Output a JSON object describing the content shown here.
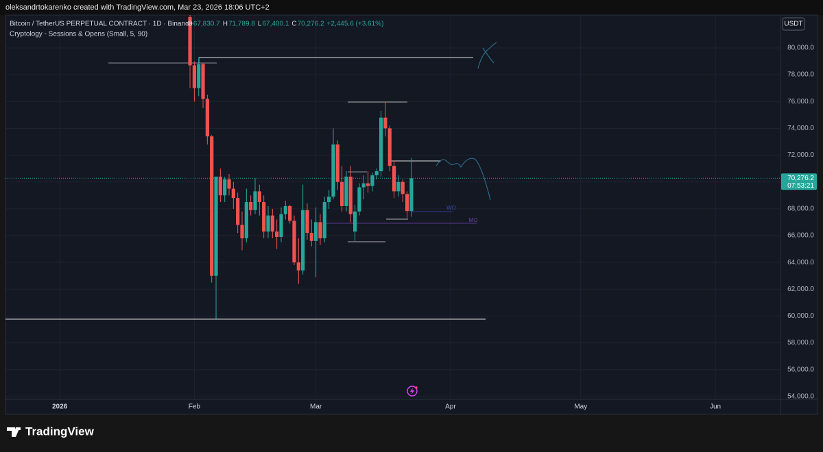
{
  "header": {
    "attribution": "oleksandrtokarenko created with TradingView.com, Mar 23, 2026 18:06 UTC+2"
  },
  "chart_data": {
    "type": "candlestick",
    "title": "Bitcoin / TetherUS PERPETUAL CONTRACT · 1D · Binance",
    "ohlc_legend": [
      {
        "letter": "O",
        "text": "67,830.7"
      },
      {
        "letter": "H",
        "text": "71,789.8"
      },
      {
        "letter": "L",
        "text": "67,400.1"
      },
      {
        "letter": "C",
        "text": "70,276.2"
      }
    ],
    "change": "+2,445.6 (+3.61%)",
    "indicator": "Cryptology - Sessions & Opens (Small, 5, 90)",
    "currency": "USDT",
    "up_color": "#26a69a",
    "down_color": "#ef5350",
    "grid": true,
    "xlim": [
      -12.5,
      166
    ],
    "xticks": [
      {
        "value": 0,
        "label": "2026"
      },
      {
        "value": 31,
        "label": "Feb"
      },
      {
        "value": 59,
        "label": "Mar"
      },
      {
        "value": 90,
        "label": "Apr"
      },
      {
        "value": 120,
        "label": "May"
      },
      {
        "value": 151,
        "label": "Jun"
      }
    ],
    "ylim": [
      53790,
      82450
    ],
    "yticks": [
      {
        "value": 54000,
        "label": "54,000.0"
      },
      {
        "value": 56000,
        "label": "56,000.0"
      },
      {
        "value": 58000,
        "label": "58,000.0"
      },
      {
        "value": 60000,
        "label": "60,000.0"
      },
      {
        "value": 62000,
        "label": "62,000.0"
      },
      {
        "value": 64000,
        "label": "64,000.0"
      },
      {
        "value": 66000,
        "label": "66,000.0"
      },
      {
        "value": 68000,
        "label": "68,000.0"
      },
      {
        "value": 70000,
        "label": "70,000.0"
      },
      {
        "value": 72000,
        "label": "72,000.0"
      },
      {
        "value": 74000,
        "label": "74,000.0"
      },
      {
        "value": 76000,
        "label": "76,000.0"
      },
      {
        "value": 78000,
        "label": "78,000.0"
      },
      {
        "value": 80000,
        "label": "80,000.0"
      }
    ],
    "last_price": {
      "value": 70276.2,
      "label": "70,276.2"
    },
    "countdown": "07:53:21",
    "level_labels": [
      "WO",
      "MO"
    ],
    "x": [
      30,
      31,
      32,
      33,
      34,
      35,
      36,
      37,
      38,
      39,
      40,
      41,
      42,
      43,
      44,
      45,
      46,
      47,
      48,
      49,
      50,
      51,
      52,
      53,
      54,
      55,
      56,
      57,
      58,
      59,
      60,
      61,
      62,
      63,
      64,
      65,
      66,
      67,
      68,
      69,
      70,
      71,
      72,
      73,
      74,
      75,
      76,
      77,
      78,
      79,
      80,
      81
    ],
    "open": [
      82300,
      78700,
      77000,
      78800,
      76200,
      73400,
      63000,
      70400,
      69000,
      70200,
      69500,
      68800,
      66800,
      65800,
      68500,
      67900,
      69300,
      68500,
      66300,
      67500,
      66300,
      65900,
      67600,
      68200,
      67100,
      64000,
      63400,
      67900,
      66200,
      65600,
      67000,
      65800,
      68500,
      68900,
      72800,
      70000,
      68200,
      70400,
      66300,
      67800,
      69600,
      69900,
      69700,
      70500,
      70800,
      74800,
      74000,
      71200,
      69300,
      70000,
      69100,
      67830.7
    ],
    "high": [
      82450,
      79000,
      79300,
      78900,
      76500,
      73500,
      70400,
      71000,
      70400,
      70600,
      70000,
      69200,
      67800,
      69500,
      69000,
      70300,
      69800,
      69000,
      68200,
      68000,
      67200,
      68100,
      68600,
      68300,
      67500,
      65800,
      69800,
      68400,
      67200,
      68100,
      67600,
      68900,
      69400,
      74000,
      73100,
      71200,
      70800,
      71200,
      68300,
      69900,
      70500,
      70800,
      70700,
      71000,
      75300,
      76000,
      74200,
      71600,
      70500,
      70200,
      69300,
      71789.8
    ],
    "low": [
      77000,
      76000,
      76400,
      75500,
      72800,
      62500,
      59800,
      68500,
      68500,
      69000,
      68000,
      66200,
      64900,
      65500,
      67500,
      67600,
      67500,
      65800,
      65800,
      65800,
      65000,
      65500,
      67200,
      66900,
      63800,
      62400,
      63100,
      65700,
      65200,
      62900,
      65300,
      65500,
      68000,
      68700,
      69400,
      67800,
      67800,
      67000,
      65600,
      67500,
      68700,
      69200,
      69300,
      70200,
      70400,
      73400,
      70800,
      68800,
      68900,
      68500,
      67300,
      67400.1
    ],
    "close": [
      78700,
      77000,
      78800,
      76200,
      73400,
      63000,
      70400,
      69000,
      70200,
      69500,
      68800,
      66800,
      65800,
      68500,
      67900,
      69300,
      68500,
      66300,
      67500,
      66300,
      65900,
      67600,
      68200,
      67100,
      64000,
      63400,
      67900,
      66200,
      65600,
      67000,
      65800,
      68500,
      68900,
      72800,
      70000,
      68200,
      70400,
      67600,
      67800,
      69600,
      69900,
      69700,
      70500,
      70800,
      74800,
      74000,
      71200,
      69300,
      70000,
      69100,
      67830.6,
      70276.2
    ]
  },
  "footer": {
    "brand": "TradingView"
  }
}
